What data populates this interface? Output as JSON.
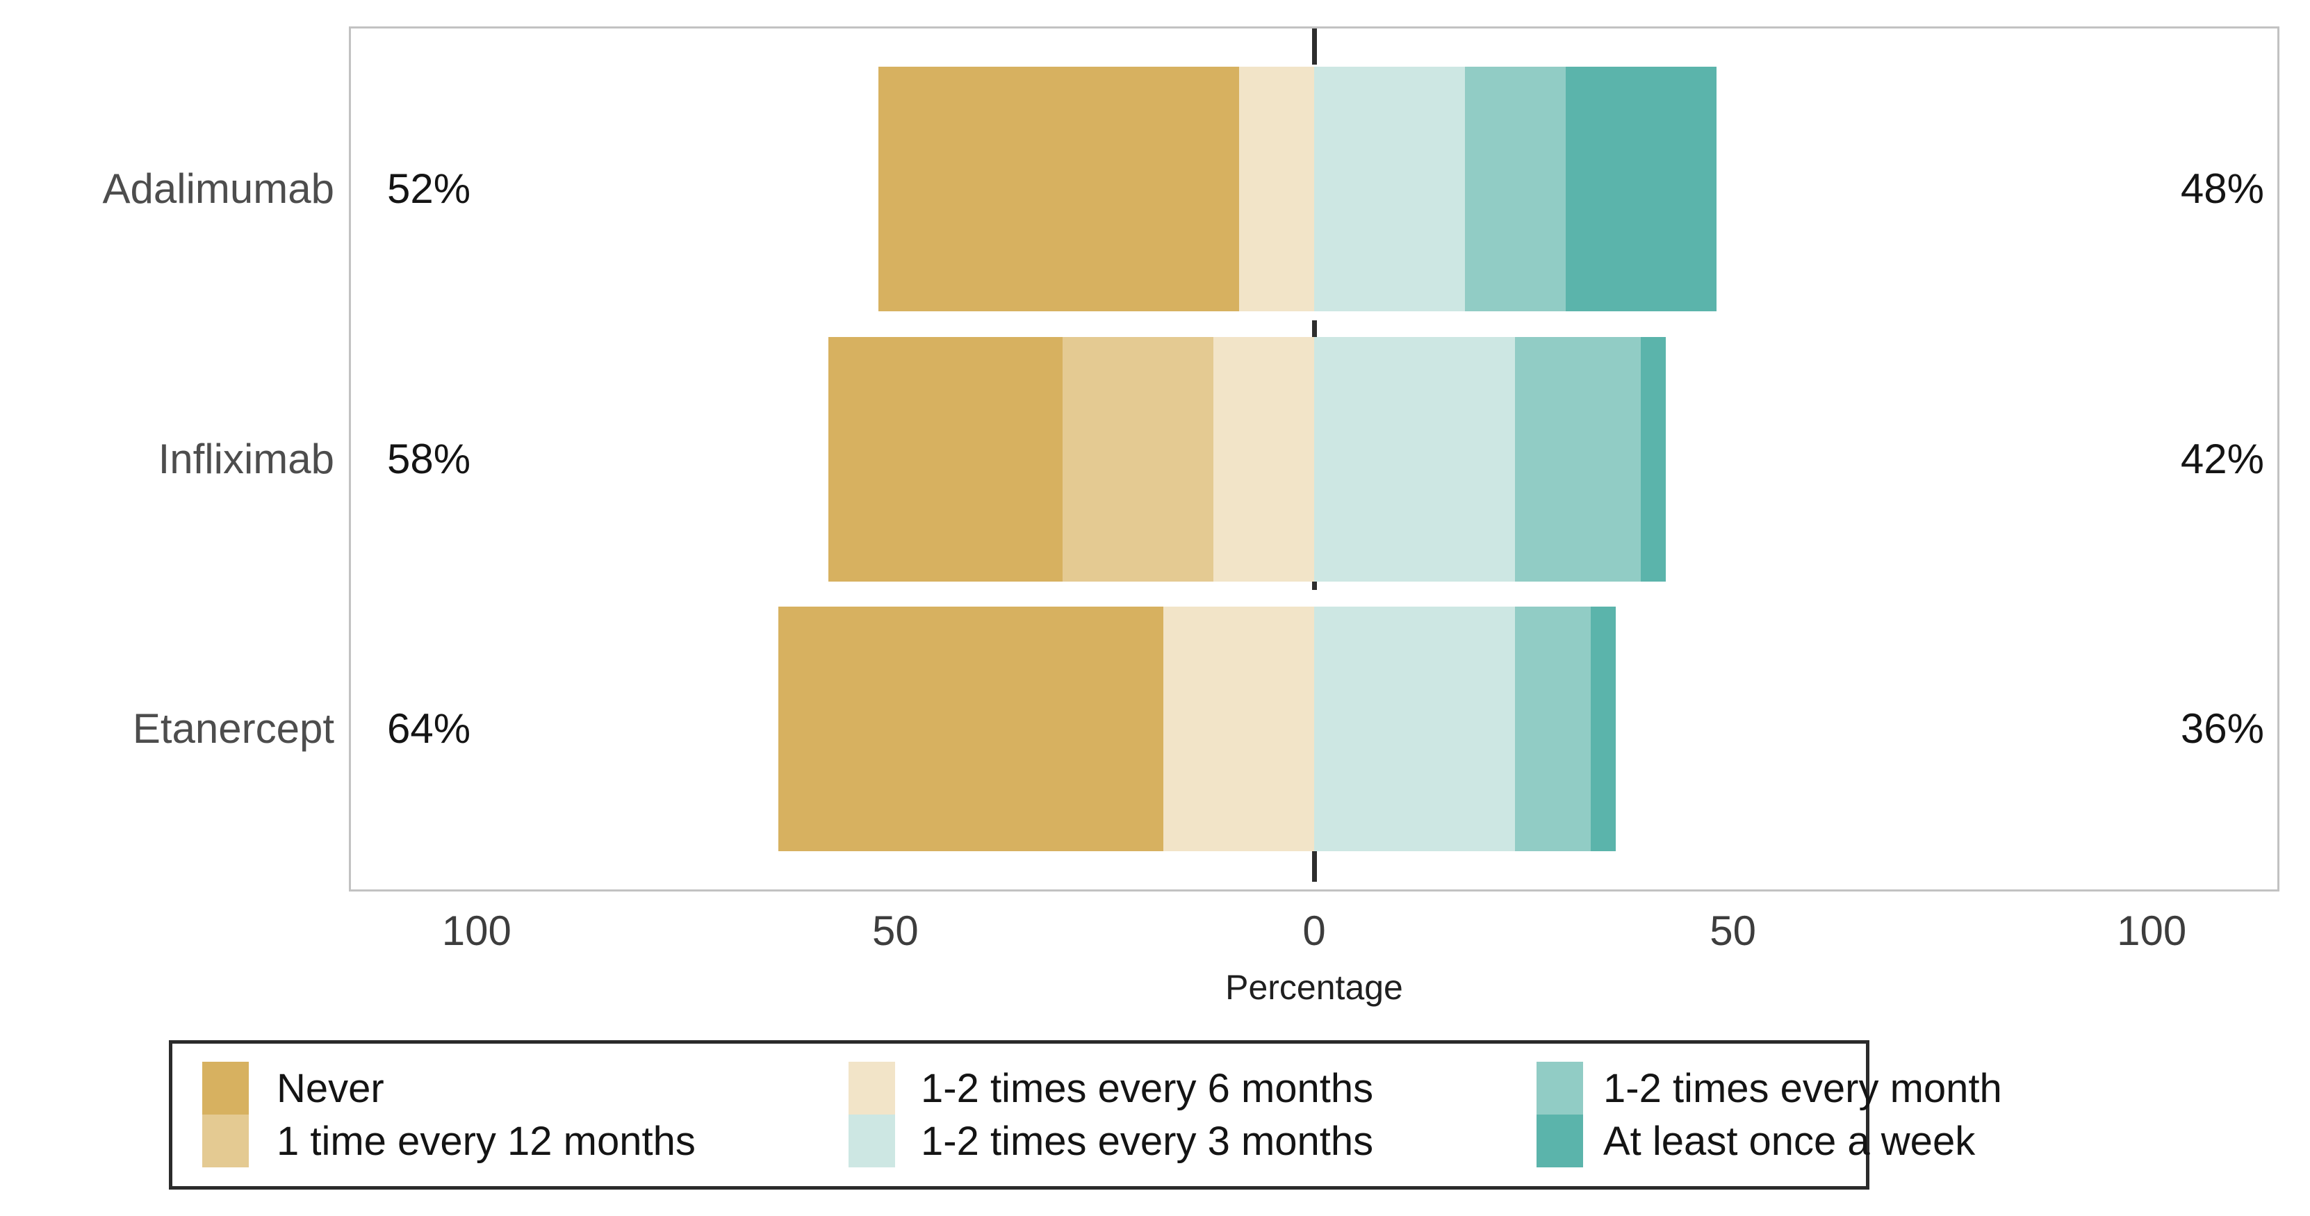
{
  "figure": {
    "background": "#ffffff"
  },
  "chart_data": {
    "type": "bar",
    "subtype": "diverging-stacked-likert-horizontal",
    "title": "",
    "xlabel": "Percentage",
    "ylabel": "",
    "categories": [
      "Adalimumab",
      "Infliximab",
      "Etanercept"
    ],
    "left_total_labels": [
      "52%",
      "58%",
      "64%"
    ],
    "right_total_labels": [
      "48%",
      "42%",
      "36%"
    ],
    "x_ticks": [
      -100,
      -50,
      0,
      50,
      100
    ],
    "x_tick_labels": [
      "100",
      "50",
      "0",
      "50",
      "100"
    ],
    "xlim": [
      -115,
      115
    ],
    "grid": false,
    "zero_line": true,
    "legend_position": "bottom",
    "series": [
      {
        "name": "Never",
        "side": "left",
        "color": "#d7b160",
        "values": [
          43,
          28,
          46
        ]
      },
      {
        "name": "1 time every 12 months",
        "side": "left",
        "color": "#e4ca92",
        "values": [
          0,
          18,
          0
        ]
      },
      {
        "name": "1-2 times every 6 months",
        "side": "left",
        "color": "#f2e4c8",
        "values": [
          9,
          12,
          18
        ]
      },
      {
        "name": "1-2 times every 3 months",
        "side": "right",
        "color": "#cde7e3",
        "values": [
          18,
          24,
          24
        ]
      },
      {
        "name": "1-2 times every month",
        "side": "right",
        "color": "#91ccc5",
        "values": [
          12,
          15,
          9
        ]
      },
      {
        "name": "At least once a week",
        "side": "right",
        "color": "#5bb4ab",
        "values": [
          18,
          3,
          3
        ]
      }
    ],
    "legend_entries": [
      "Never",
      "1 time every 12 months",
      "1-2 times every 6 months",
      "1-2 times every 3 months",
      "1-2 times every month",
      "At least once a week"
    ]
  },
  "colors": {
    "panel_border": "#c2c2c2",
    "legend_border": "#2b2b2b",
    "zero_line": "#2e2e2e",
    "category_label": "#4d4d4d",
    "value_label": "#141414",
    "tick_label": "#3d3d3d",
    "axis_title": "#1f1f1f"
  }
}
